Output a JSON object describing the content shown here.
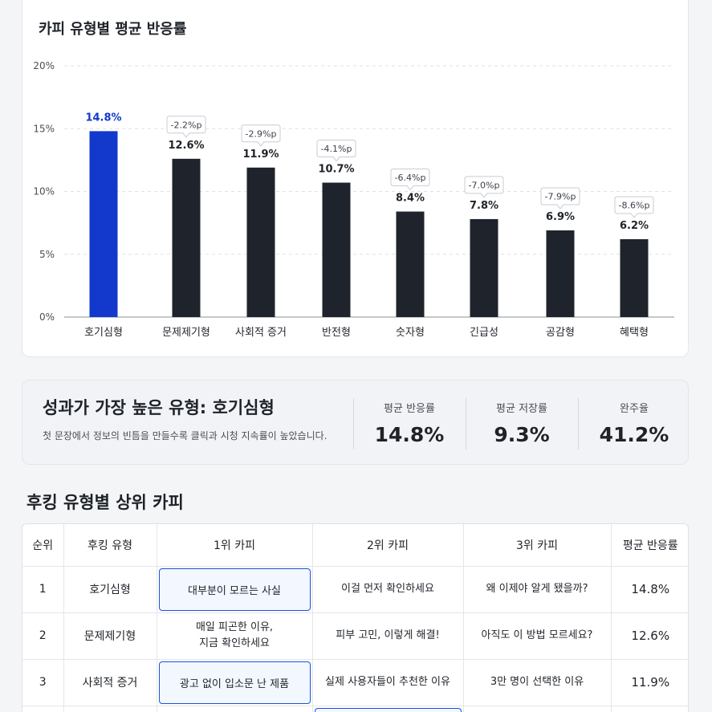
{
  "chart": {
    "title": "카피 유형별 평균 반응률"
  },
  "chart_data": {
    "type": "bar",
    "title": "카피 유형별 평균 반응률",
    "categories": [
      "호기심형",
      "문제제기형",
      "사회적 증거",
      "반전형",
      "숫자형",
      "긴급성",
      "공감형",
      "혜택형"
    ],
    "values": [
      14.8,
      12.6,
      11.9,
      10.7,
      8.4,
      7.8,
      6.9,
      6.2
    ],
    "value_labels": [
      "14.8%",
      "12.6%",
      "11.9%",
      "10.7%",
      "8.4%",
      "7.8%",
      "6.9%",
      "6.2%"
    ],
    "diff_labels": [
      "",
      "-2.2%p",
      "-2.9%p",
      "-4.1%p",
      "-6.4%p",
      "-7.0%p",
      "-7.9%p",
      "-8.6%p"
    ],
    "yticks": [
      "0%",
      "5%",
      "10%",
      "15%",
      "20%"
    ],
    "ylim": [
      0,
      20
    ],
    "grid": true,
    "highlight_index": 0,
    "colors": {
      "highlight": "#1238cc",
      "bar": "#1f232b",
      "highlight_label": "#1238cc",
      "grid": "#dde1e6"
    }
  },
  "summary": {
    "headline": "성과가 가장 높은 유형: 호기심형",
    "description": "첫 문장에서 정보의 빈틈을 만들수록 클릭과 시청 지속률이 높았습니다.",
    "stats": [
      {
        "label": "평균 반응률",
        "value": "14.8%"
      },
      {
        "label": "평균 저장률",
        "value": "9.3%"
      },
      {
        "label": "완주율",
        "value": "41.2%"
      }
    ]
  },
  "table": {
    "title": "후킹 유형별 상위 카피",
    "headers": [
      "순위",
      "후킹 유형",
      "1위 카피",
      "2위 카피",
      "3위 카피",
      "평균 반응률"
    ],
    "rows": [
      {
        "rank": "1",
        "type": "호기심형",
        "copy1": "대부분이 모르는 사실",
        "copy2": "이걸 먼저 확인하세요",
        "copy3": "왜 이제야 알게 됐을까?",
        "avg": "14.8%"
      },
      {
        "rank": "2",
        "type": "문제제기형",
        "copy1_line1": "매일 피곤한 이유,",
        "copy1_line2": "지금 확인하세요",
        "copy2": "피부 고민, 이렇게 해결!",
        "copy3": "아직도 이 방법 모르세요?",
        "avg": "12.6%"
      },
      {
        "rank": "3",
        "type": "사회적 증거",
        "copy1": "광고 없이 입소문 난 제품",
        "copy2": "실제 사용자들이 추천한 이유",
        "copy3": "3만 명이 선택한 이유",
        "avg": "11.9%"
      }
    ]
  }
}
